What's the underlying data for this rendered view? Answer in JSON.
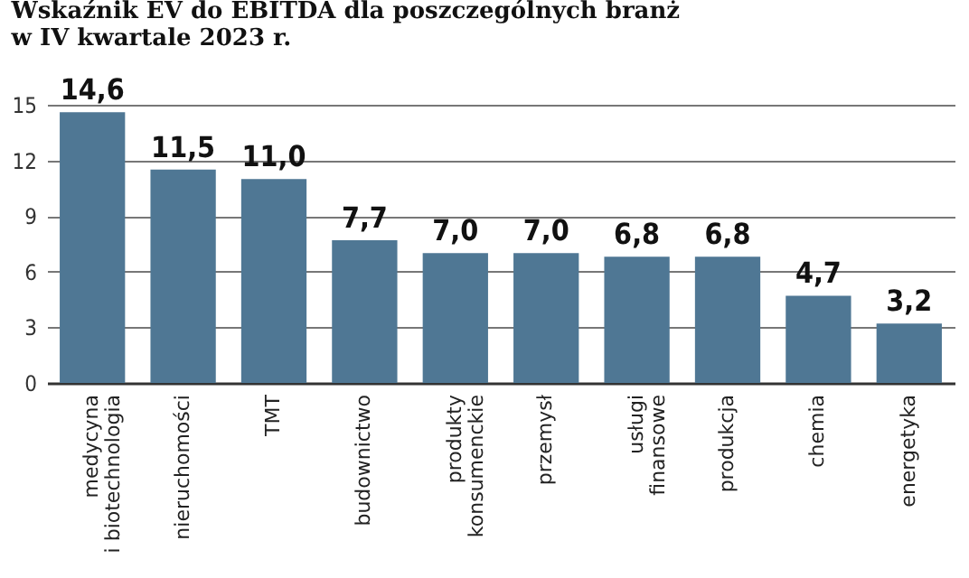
{
  "chart_data": {
    "type": "bar",
    "title": "Wskaźnik EV do EBITDA dla poszczególnych branż w IV kwartale 2023 r.",
    "categories": [
      "medycyna\ni biotechnologia",
      "nieruchomości",
      "TMT",
      "budownictwo",
      "produkty\nkonsumenckie",
      "przemysł",
      "usługi\nfinansowe",
      "produkcja",
      "chemia",
      "energetyka"
    ],
    "values": [
      14.6,
      11.5,
      11.0,
      7.7,
      7.0,
      7.0,
      6.8,
      6.8,
      4.7,
      3.2
    ],
    "value_labels": [
      "14,6",
      "11,5",
      "11,0",
      "7,7",
      "7,0",
      "7,0",
      "6,8",
      "6,8",
      "4,7",
      "3,2"
    ],
    "color": "#4f7794",
    "ylim": [
      0,
      15
    ],
    "yticks": [
      0,
      3,
      6,
      9,
      12,
      15
    ],
    "grid": "y"
  }
}
